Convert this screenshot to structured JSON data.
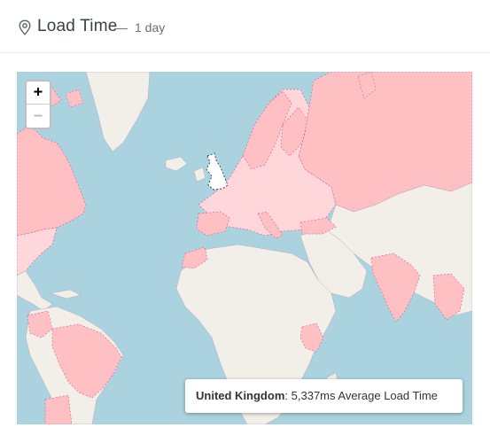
{
  "header": {
    "title": "Load Time",
    "separator": "—",
    "range": "1 day",
    "icon": "map-pin-icon"
  },
  "map": {
    "zoom_in_label": "+",
    "zoom_out_label": "−",
    "colors": {
      "water": "#aad3df",
      "land": "#f2efe9",
      "data_country": "#ffc0c4",
      "data_country_light": "#ffd6d9",
      "highlight": "#ffffff"
    },
    "tooltip": {
      "country": "United Kingdom",
      "colon": ":",
      "value": "5,337ms Average Load Time"
    }
  }
}
